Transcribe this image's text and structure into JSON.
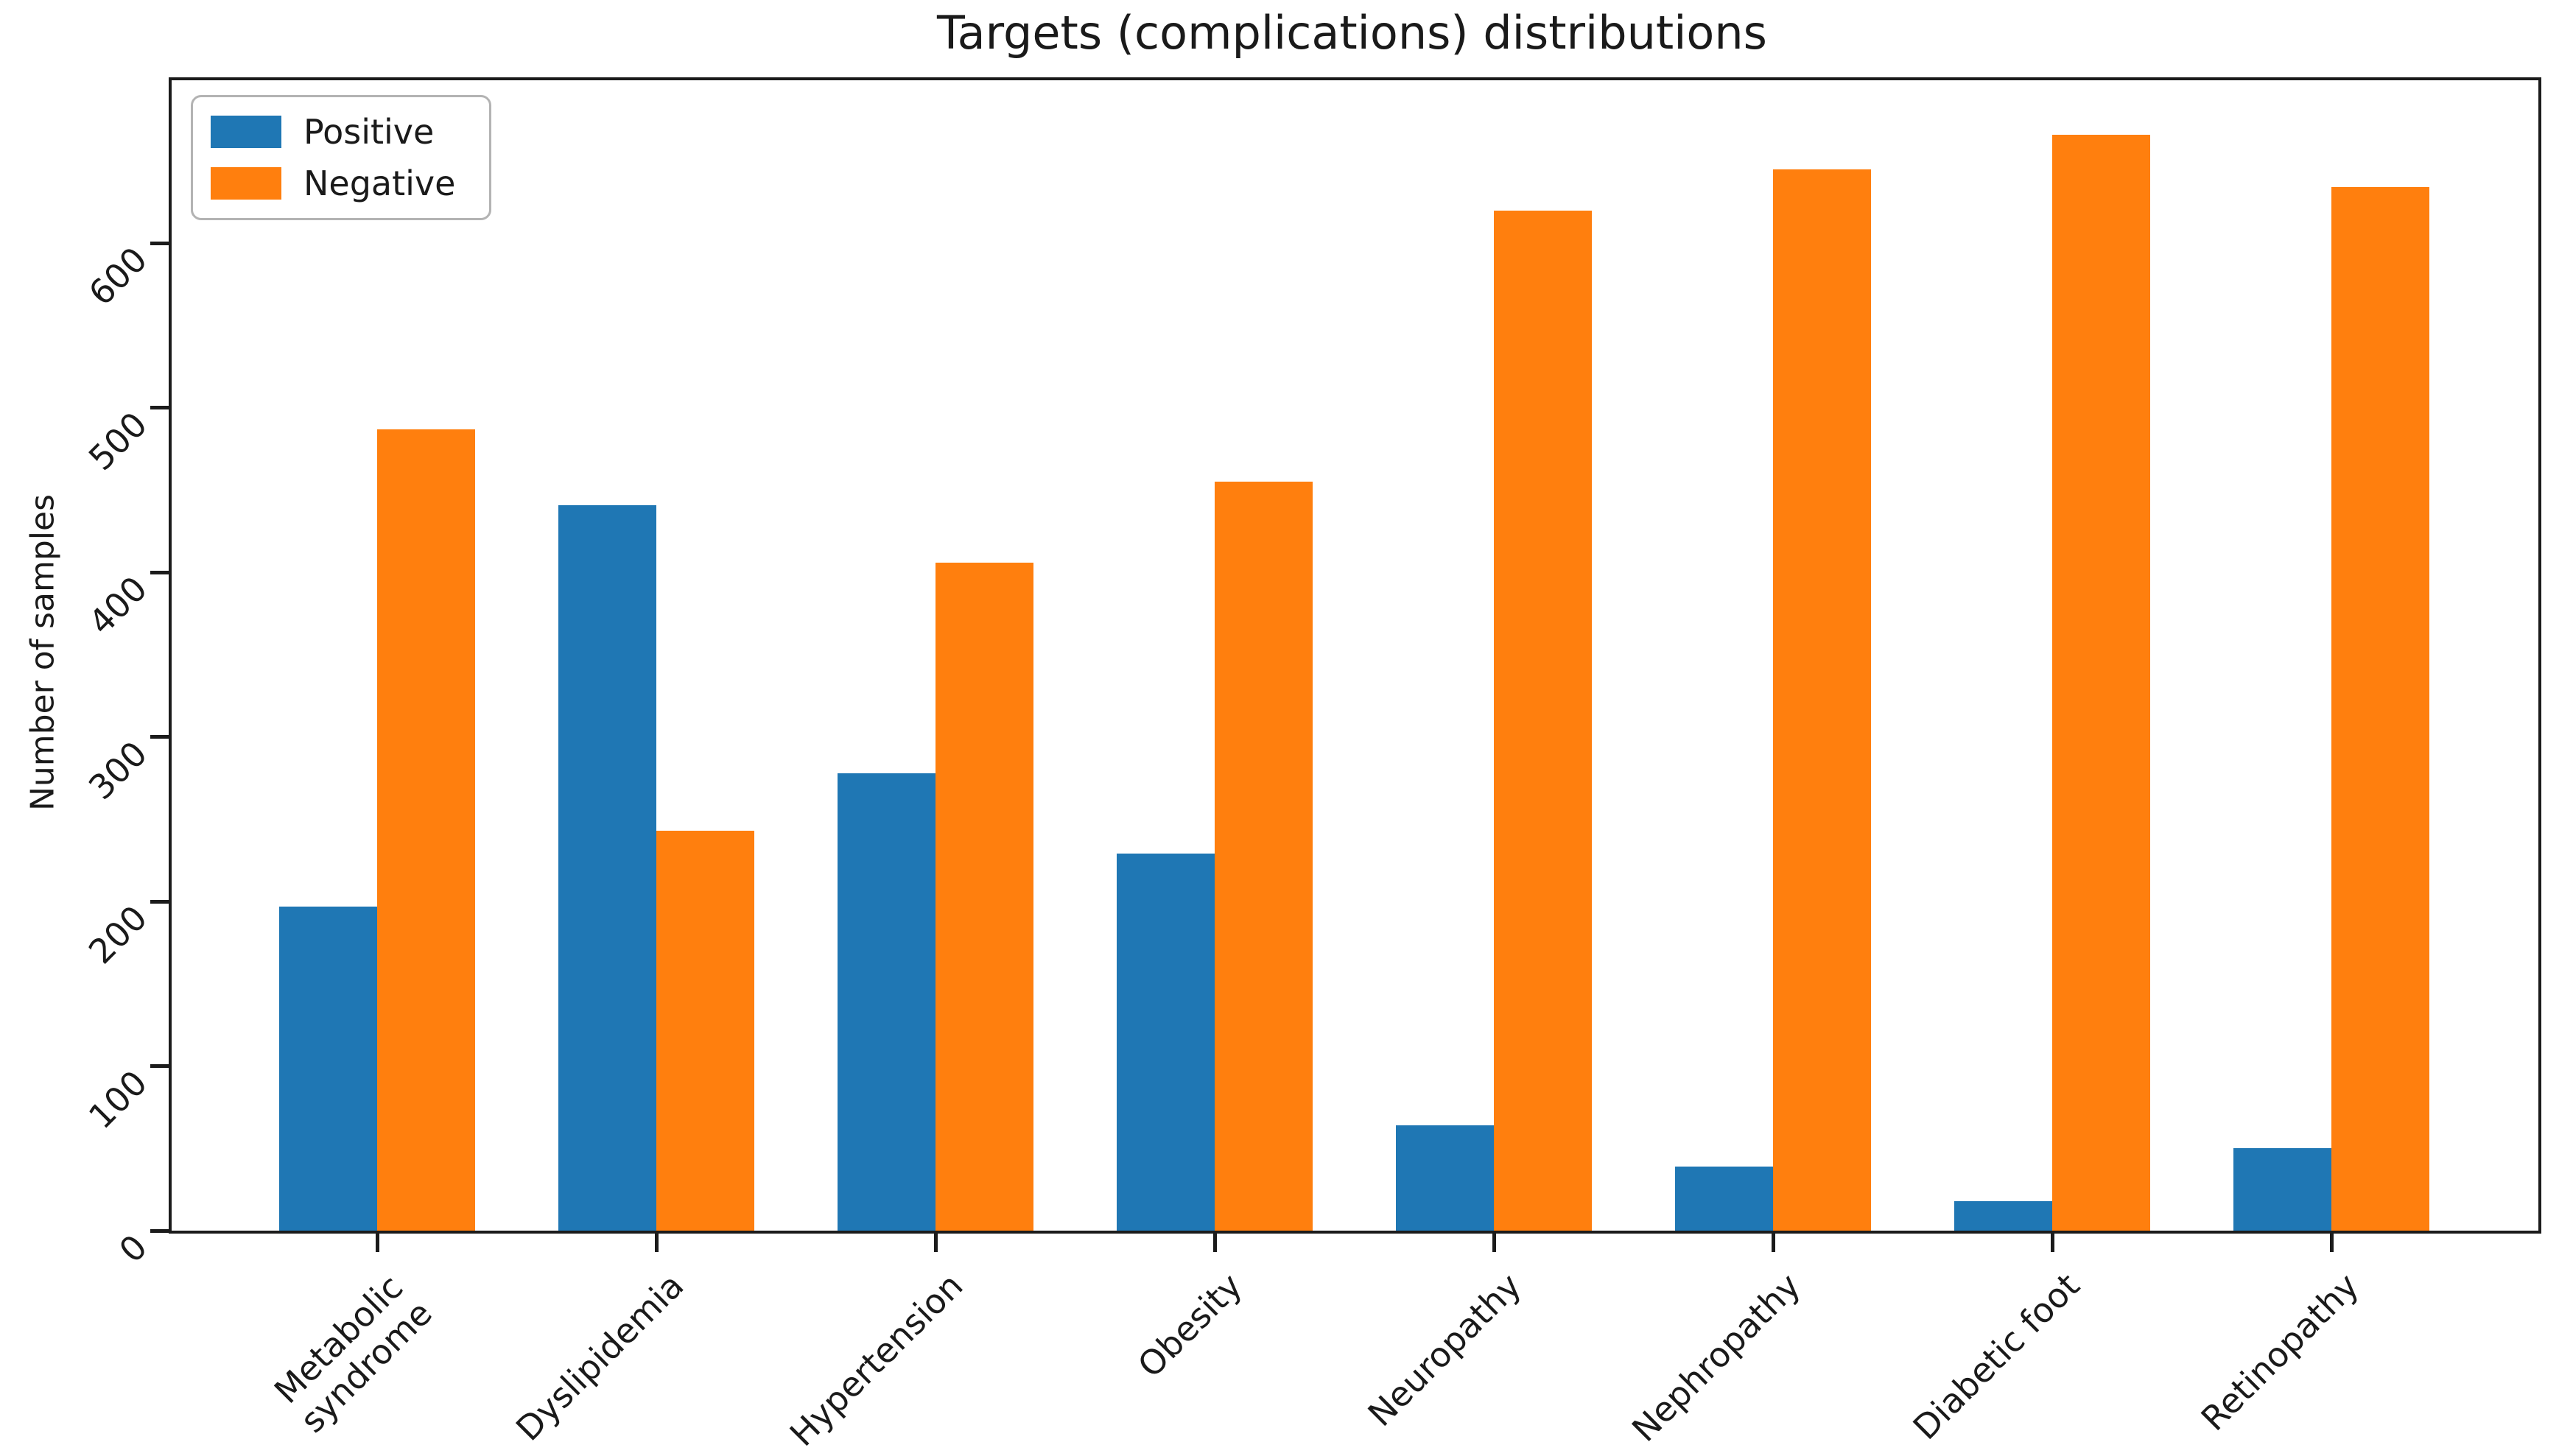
{
  "figure": {
    "title": "Targets (complications) distributions",
    "ylabel": "Number of samples"
  },
  "legend": {
    "items": [
      {
        "label": "Positive",
        "color": "#1f77b4"
      },
      {
        "label": "Negative",
        "color": "#ff7f0e"
      }
    ]
  },
  "chart_data": {
    "type": "bar",
    "title": "Targets (complications) distributions",
    "xlabel": "",
    "ylabel": "Number of samples",
    "categories": [
      "Metabolic\nsyndrome",
      "Dyslipidemia",
      "Hypertension",
      "Obesity",
      "Neuropathy",
      "Nephropathy",
      "Diabetic foot",
      "Retinopathy"
    ],
    "series": [
      {
        "name": "Positive",
        "color": "#1f77b4",
        "values": [
          197,
          441,
          278,
          229,
          64,
          39,
          18,
          50
        ]
      },
      {
        "name": "Negative",
        "color": "#ff7f0e",
        "values": [
          487,
          243,
          406,
          455,
          620,
          645,
          666,
          634
        ]
      }
    ],
    "yticks": [
      0,
      100,
      200,
      300,
      400,
      500,
      600
    ],
    "ylim": [
      0,
      699
    ],
    "grid": false,
    "legend_position": "upper left",
    "bar_width": 0.35,
    "xtick_rotation": 45,
    "ytick_rotation": 45
  }
}
